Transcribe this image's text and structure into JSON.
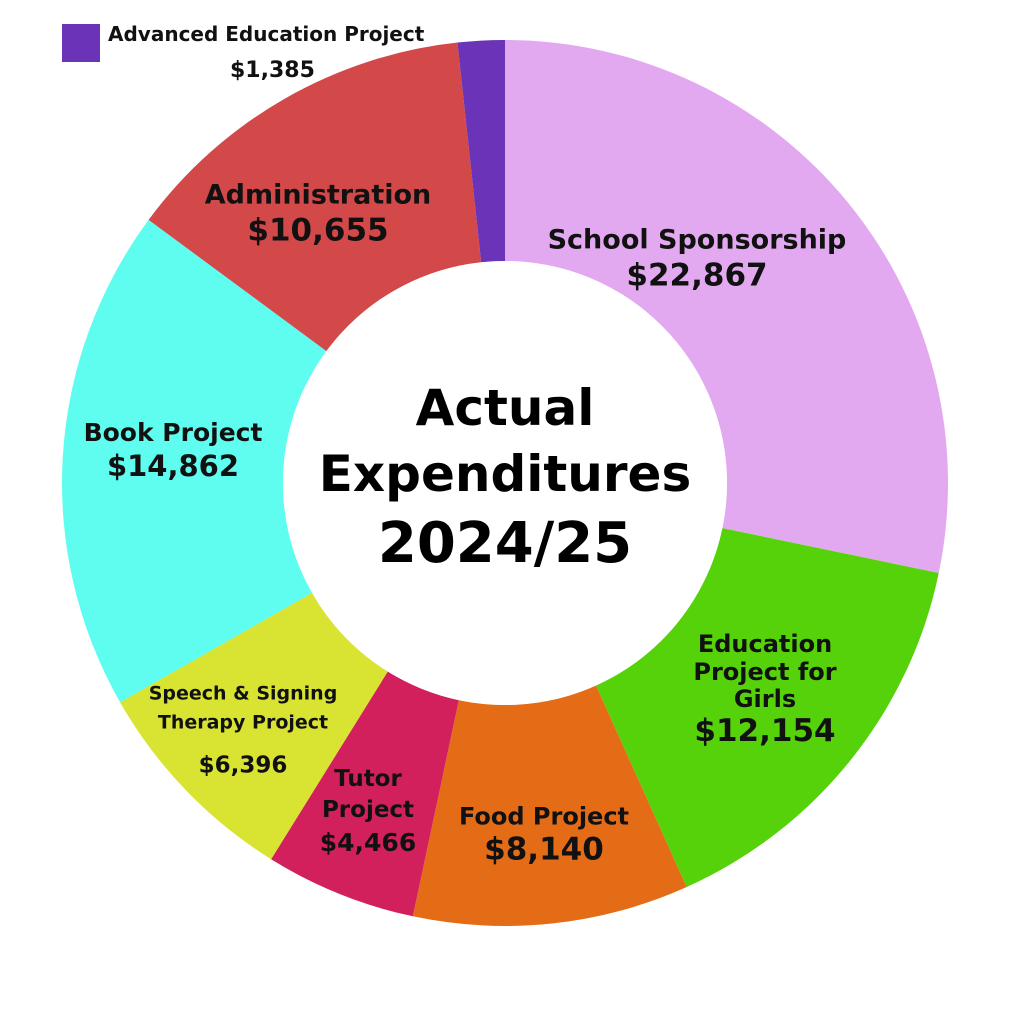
{
  "chart_data": {
    "type": "pie",
    "title_lines": [
      "Actual",
      "Expenditures",
      "2024/25"
    ],
    "slices": [
      {
        "name": "School Sponsorship",
        "value": 22867,
        "value_label": "$22,867",
        "color": "#e2a9f0"
      },
      {
        "name": "Education Project for Girls",
        "value": 12154,
        "value_label": "$12,154",
        "color": "#55d20a"
      },
      {
        "name": "Food Project",
        "value": 8140,
        "value_label": "$8,140",
        "color": "#e46c16"
      },
      {
        "name": "Tutor Project",
        "value": 4466,
        "value_label": "$4,466",
        "color": "#d1205c"
      },
      {
        "name": "Speech & Signing Therapy Project",
        "value": 6396,
        "value_label": "$6,396",
        "color": "#d8e332"
      },
      {
        "name": "Book Project",
        "value": 14862,
        "value_label": "$14,862",
        "color": "#5efdf0"
      },
      {
        "name": "Administration",
        "value": 10655,
        "value_label": "$10,655",
        "color": "#d34848"
      },
      {
        "name": "Advanced Education Project",
        "value": 1385,
        "value_label": "$1,385",
        "color": "#6a33b8"
      }
    ]
  }
}
